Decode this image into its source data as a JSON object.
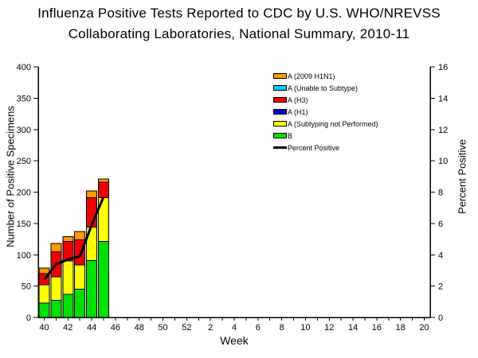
{
  "title": {
    "line1": "Influenza Positive Tests Reported to CDC by U.S. WHO/NREVSS",
    "line2": "Collaborating Laboratories, National Summary, 2010-11"
  },
  "chart_data": {
    "type": "bar",
    "stacked": true,
    "has_secondary_line": true,
    "x_label": "Week",
    "y_left_label": "Number of Positive Specimens",
    "y_right_label": "Percent Positive",
    "y_left_axis": {
      "min": 0,
      "max": 400,
      "step": 50,
      "tick_labels": [
        "0",
        "50",
        "100",
        "150",
        "200",
        "250",
        "300",
        "350",
        "400"
      ]
    },
    "y_right_axis": {
      "min": 0,
      "max": 16,
      "step": 2,
      "tick_labels": [
        "0",
        "2",
        "4",
        "6",
        "8",
        "10",
        "12",
        "14",
        "16"
      ]
    },
    "x_axis": {
      "num_slots": 33,
      "labels": [
        "40",
        "42",
        "44",
        "46",
        "48",
        "50",
        "52",
        "2",
        "4",
        "6",
        "8",
        "10",
        "12",
        "14",
        "16",
        "18",
        "20"
      ],
      "label_slots": [
        0,
        2,
        4,
        6,
        8,
        10,
        12,
        14,
        16,
        18,
        20,
        22,
        24,
        26,
        28,
        30,
        32
      ]
    },
    "bars": {
      "weeks": [
        "40",
        "41",
        "42",
        "43",
        "44",
        "45"
      ],
      "slots": [
        0,
        1,
        2,
        3,
        4,
        5
      ],
      "series": [
        {
          "name": "A (2009 H1N1)",
          "color": "#FF9900",
          "values": [
            9,
            13,
            8,
            13,
            11,
            5
          ]
        },
        {
          "name": "A (Unable to Subtype)",
          "color": "#00CCFF",
          "values": [
            0,
            0,
            0,
            0,
            0,
            0
          ]
        },
        {
          "name": "A (H3)",
          "color": "#EE0000",
          "values": [
            18,
            40,
            31,
            40,
            47,
            25
          ]
        },
        {
          "name": "A (H1)",
          "color": "#0000CC",
          "values": [
            0,
            0,
            0,
            0,
            0,
            0
          ]
        },
        {
          "name": "A (Subtyping not Performed)",
          "color": "#FFFF00",
          "values": [
            29,
            38,
            53,
            39,
            53,
            70
          ]
        },
        {
          "name": "B",
          "color": "#00E000",
          "values": [
            23,
            27,
            37,
            45,
            91,
            121
          ]
        }
      ],
      "stack_order_bottom_to_top": [
        "B",
        "A (Subtyping not Performed)",
        "A (H1)",
        "A (H3)",
        "A (Unable to Subtype)",
        "A (2009 H1N1)"
      ],
      "totals": [
        79,
        118,
        129,
        137,
        202,
        221
      ]
    },
    "line": {
      "name": "Percent Positive",
      "color": "#000000",
      "values": [
        2.4,
        3.4,
        3.7,
        3.9,
        5.9,
        7.7
      ]
    },
    "legend": [
      {
        "label": "A (2009 H1N1)",
        "color": "#FF9900",
        "type": "box"
      },
      {
        "label": "A (Unable to Subtype)",
        "color": "#00CCFF",
        "type": "box"
      },
      {
        "label": "A (H3)",
        "color": "#EE0000",
        "type": "box"
      },
      {
        "label": "A (H1)",
        "color": "#0000CC",
        "type": "box"
      },
      {
        "label": "A (Subtyping not Performed)",
        "color": "#FFFF00",
        "type": "box"
      },
      {
        "label": "B",
        "color": "#00E000",
        "type": "box"
      },
      {
        "label": "Percent Positive",
        "color": "#000000",
        "type": "line"
      }
    ],
    "legend_position": "top-right-inside",
    "grid": false
  }
}
